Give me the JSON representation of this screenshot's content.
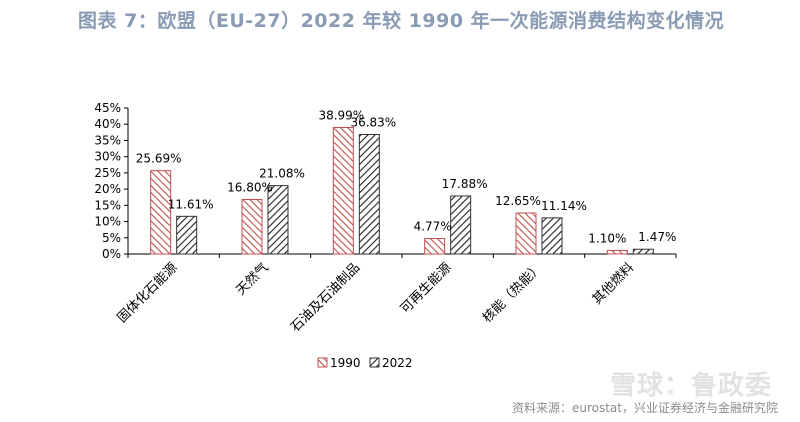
{
  "header": {
    "title": "图表 7：欧盟（EU-27）2022 年较 1990 年一次能源消费结构变化情况"
  },
  "footer": {
    "source": "资料来源：eurostat，兴业证券经济与金融研究院",
    "watermark": "雪球：鲁政委"
  },
  "chart_data": {
    "type": "bar",
    "categories": [
      "固体化石能源",
      "天然气",
      "石油及石油制品",
      "可再生能源",
      "核能（热能）",
      "其他燃料"
    ],
    "series": [
      {
        "name": "1990",
        "values": [
          25.69,
          16.8,
          38.99,
          4.77,
          12.65,
          1.1
        ],
        "labels": [
          "25.69%",
          "16.80%",
          "38.99%",
          "4.77%",
          "12.65%",
          "1.10%"
        ],
        "color": "#c0504d",
        "pattern": "diagonal-up"
      },
      {
        "name": "2022",
        "values": [
          11.61,
          21.08,
          36.83,
          17.88,
          11.14,
          1.47
        ],
        "labels": [
          "11.61%",
          "21.08%",
          "36.83%",
          "17.88%",
          "11.14%",
          "1.47%"
        ],
        "color": "#333333",
        "pattern": "diagonal-down"
      }
    ],
    "ylim": [
      0,
      45
    ],
    "yticks": [
      "0%",
      "5%",
      "10%",
      "15%",
      "20%",
      "25%",
      "30%",
      "35%",
      "40%",
      "45%"
    ],
    "ytick_values": [
      0,
      5,
      10,
      15,
      20,
      25,
      30,
      35,
      40,
      45
    ],
    "grid": false,
    "legend_position": "bottom-left",
    "title": "",
    "xlabel": "",
    "ylabel": ""
  }
}
